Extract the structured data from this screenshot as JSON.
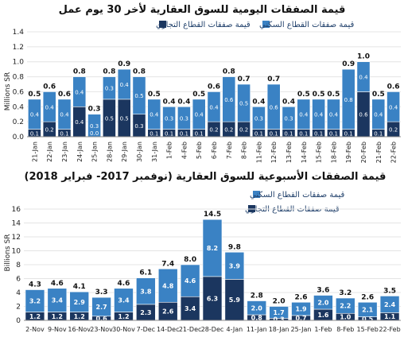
{
  "colors": {
    "commercial": "#1b365f",
    "residential": "#3a82c4",
    "highlight_commercial": "#1b365f",
    "highlight_residential": "#3a82c4"
  },
  "chart_data": [
    {
      "type": "bar",
      "stacked": true,
      "title": "قيمة الصفقات اليومية للسوق العقارية لأخر 30 يوم عمل",
      "ylabel": "Millions SR",
      "ylim": [
        0,
        1.4
      ],
      "yticks": [
        "0.0",
        "0.2",
        "0.4",
        "0.6",
        "0.8",
        "1.0",
        "1.2",
        "1.4"
      ],
      "legend": {
        "placement": "top",
        "entries": [
          "قيمة صفقات القطاع التجاري",
          "قيمة صفقات القطاع السكني"
        ]
      },
      "categories": [
        "21-Jan",
        "22-Jan",
        "23-Jan",
        "24-Jan",
        "25-Jan",
        "28-Jan",
        "29-Jan",
        "30-Jan",
        "31-Jan",
        "1-Feb",
        "4-Feb",
        "5-Feb",
        "6-Feb",
        "7-Feb",
        "8-Feb",
        "11-Feb",
        "12-Feb",
        "13-Feb",
        "14-Feb",
        "15-Feb",
        "18-Feb",
        "19-Feb",
        "20-Feb",
        "21-Feb",
        "22-Feb"
      ],
      "series": [
        {
          "name": "قيمة صفقات القطاع التجاري",
          "values": [
            0.1,
            0.2,
            0.1,
            0.4,
            0.0,
            0.5,
            0.5,
            0.3,
            0.1,
            0.1,
            0.1,
            0.1,
            0.2,
            0.2,
            0.2,
            0.1,
            0.1,
            0.1,
            0.1,
            0.1,
            0.1,
            0.1,
            0.6,
            0.1,
            0.2
          ]
        },
        {
          "name": "قيمة صفقات القطاع السكني",
          "values": [
            0.4,
            0.4,
            0.4,
            0.4,
            0.3,
            0.3,
            0.4,
            0.5,
            0.4,
            0.3,
            0.3,
            0.4,
            0.4,
            0.6,
            0.5,
            0.3,
            0.6,
            0.3,
            0.4,
            0.4,
            0.4,
            0.8,
            0.4,
            0.4,
            0.4
          ]
        }
      ],
      "totals": [
        "0.5",
        "0.6",
        "0.6",
        "0.8",
        "0.3",
        "0.8",
        "0.9",
        "0.8",
        "0.5",
        "0.4",
        "0.4",
        "0.5",
        "0.6",
        "0.8",
        "0.7",
        "0.4",
        "0.7",
        "0.4",
        "0.5",
        "0.5",
        "0.5",
        "0.9",
        "1.0",
        "0.5",
        "0.6"
      ],
      "labels_commercial": [
        "0.1",
        "0.2",
        "0.1",
        "0.4",
        "0.0",
        "0.5",
        "0.5",
        "0.3",
        "0.1",
        "0.1",
        "0.1",
        "0.1",
        "0.2",
        "0.2",
        "0.2",
        "0.1",
        "0.1",
        "0.1",
        "0.1",
        "0.1",
        "0.1",
        "0.1",
        "0.6",
        "0.1",
        "0.2"
      ],
      "labels_residential": [
        "0.4",
        "0.4",
        "0.4",
        "0.4",
        "0.3",
        "0.3",
        "0.4",
        "0.5",
        "0.4",
        "0.3",
        "0.3",
        "0.4",
        "0.4",
        "0.6",
        "0.5",
        "0.3",
        "0.6",
        "0.3",
        "0.4",
        "0.4",
        "0.4",
        "0.8",
        "0.4",
        "0.4",
        "0.4"
      ]
    },
    {
      "type": "bar",
      "stacked": true,
      "title": "قيمة الصفقات الأسبوعية للسوق العقارية (نوفمبر 2017- فبراير 2018)",
      "ylabel": "Billions SR",
      "ylim": [
        0,
        16
      ],
      "yticks": [
        "0",
        "2",
        "4",
        "6",
        "8",
        "10",
        "12",
        "14",
        "16"
      ],
      "legend": {
        "placement": "top",
        "entries": [
          "قيمة صفقات القطاع التجاري",
          "قيمة صفقات القطاع السكني"
        ]
      },
      "categories": [
        "2-Nov",
        "9-Nov",
        "16-Nov",
        "23-Nov",
        "30-Nov",
        "7-Dec",
        "14-Dec",
        "21-Dec",
        "28-Dec",
        "4-Jan",
        "11-Jan",
        "18-Jan",
        "25-Jan",
        "1-Feb",
        "8-Feb",
        "15-Feb",
        "22-Feb"
      ],
      "series": [
        {
          "name": "قيمة صفقات القطاع التجاري",
          "values": [
            1.2,
            1.2,
            1.2,
            0.6,
            1.2,
            2.3,
            2.6,
            3.4,
            6.3,
            5.9,
            0.8,
            0.3,
            0.7,
            1.6,
            1.0,
            0.5,
            1.1
          ]
        },
        {
          "name": "قيمة صفقات القطاع السكني",
          "values": [
            3.2,
            3.4,
            2.9,
            2.7,
            3.4,
            3.8,
            4.8,
            4.6,
            8.2,
            3.9,
            2.0,
            1.7,
            1.9,
            2.0,
            2.2,
            2.1,
            2.4
          ]
        }
      ],
      "totals": [
        "4.3",
        "4.6",
        "4.1",
        "3.3",
        "4.6",
        "6.1",
        "7.4",
        "8.0",
        "14.5",
        "9.8",
        "2.8",
        "2.0",
        "2.6",
        "3.6",
        "3.2",
        "2.6",
        "3.5"
      ],
      "labels_commercial": [
        "1.2",
        "1.2",
        "1.2",
        "0.6",
        "1.2",
        "2.3",
        "2.6",
        "3.4",
        "6.3",
        "5.9",
        "0.8",
        "0.3",
        "0.7",
        "1.6",
        "1.0",
        "0.5",
        "1.1"
      ],
      "labels_residential": [
        "3.2",
        "3.4",
        "2.9",
        "2.7",
        "3.4",
        "3.8",
        "4.8",
        "4.6",
        "8.2",
        "3.9",
        "2.0",
        "1.7",
        "1.9",
        "2.0",
        "2.2",
        "2.1",
        "2.4"
      ]
    }
  ]
}
